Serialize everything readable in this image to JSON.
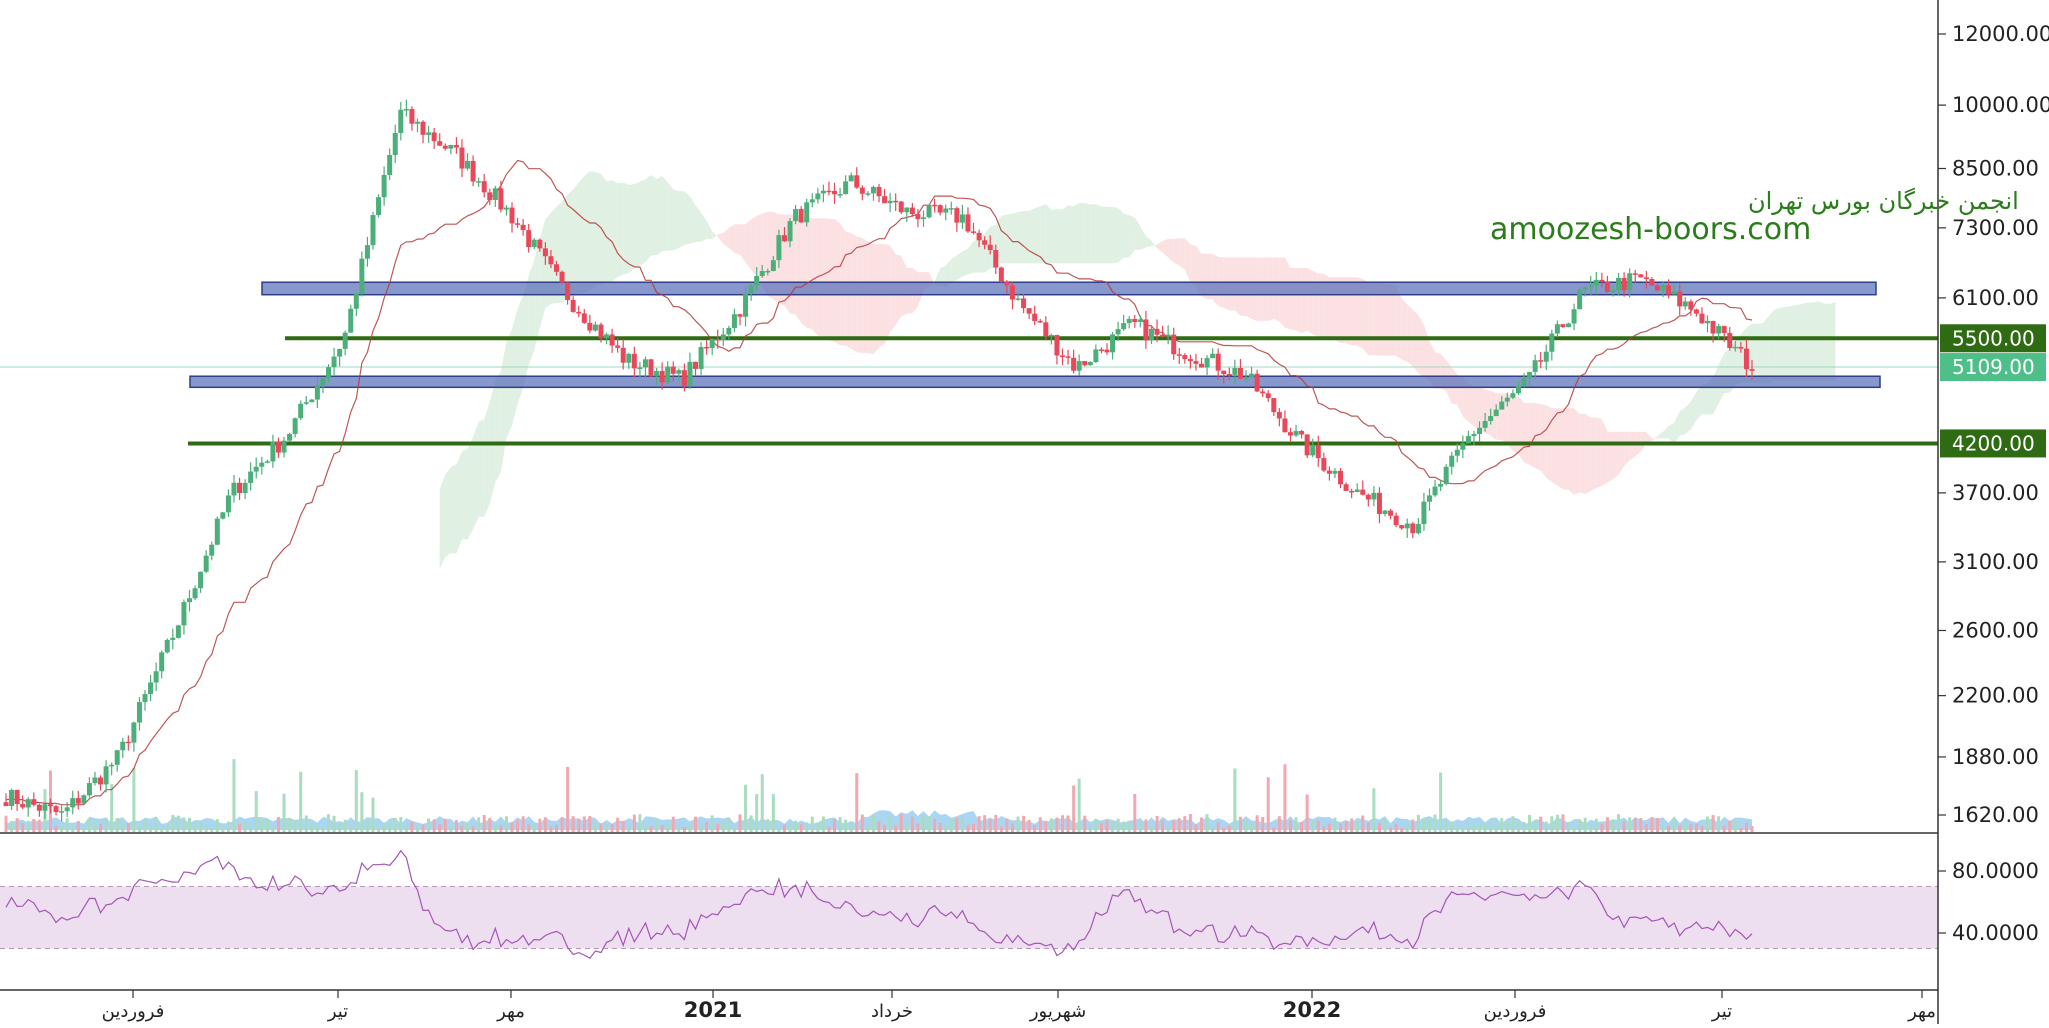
{
  "chart_data": {
    "type": "candlestick",
    "title": "",
    "price_axis": {
      "scale": "log",
      "ticks": [
        "12000.00",
        "10000.00",
        "8500.00",
        "7300.00",
        "6100.00",
        "5500.00",
        "5109.00",
        "4200.00",
        "3700.00",
        "3100.00",
        "2600.00",
        "2200.00",
        "1880.00",
        "1620.00"
      ]
    },
    "rsi_axis": {
      "ticks": [
        "80.0000",
        "40.0000"
      ],
      "band": [
        30,
        70
      ]
    },
    "time_labels": [
      {
        "label": "فروردین",
        "bold": false
      },
      {
        "label": "تیر",
        "bold": false
      },
      {
        "label": "مهر",
        "bold": false
      },
      {
        "label": "2021",
        "bold": true
      },
      {
        "label": "خرداد",
        "bold": false
      },
      {
        "label": "شهریور",
        "bold": false
      },
      {
        "label": "2022",
        "bold": true
      },
      {
        "label": "فروردین",
        "bold": false
      },
      {
        "label": "تیر",
        "bold": false
      },
      {
        "label": "مهر",
        "bold": false
      }
    ],
    "horizontal_levels": [
      {
        "price": 5500,
        "label": "5500.00",
        "color": "#2e6b12"
      },
      {
        "price": 4200,
        "label": "4200.00",
        "color": "#2e6b12"
      }
    ],
    "zones": [
      {
        "low": 6150,
        "high": 6350
      },
      {
        "low": 4850,
        "high": 4990
      }
    ],
    "last_price": {
      "price": 5109,
      "label": "5109.00",
      "color": "#4fbf8a"
    },
    "colors": {
      "up": "#4caf7a",
      "down": "#e8485a",
      "kijun": "#b33a3a",
      "zone": "#5a6fb8",
      "level": "#2e6b12",
      "rsi_line": "#a455b8",
      "rsi_band": "#eedff0",
      "cloud_bull": "#d6ebd8",
      "cloud_bear": "#fbd7da"
    },
    "key_closes": [
      1700,
      1620,
      1880,
      2600,
      3700,
      4300,
      5500,
      9800,
      8800,
      7500,
      6100,
      5200,
      4950,
      5900,
      7500,
      8200,
      7600,
      7500,
      6000,
      5100,
      5700,
      5300,
      5000,
      4200,
      3700,
      3400,
      4300,
      4900,
      6200,
      6400,
      5900,
      5109
    ]
  },
  "watermark": {
    "persian": "انجمن خبرگان بورس تهران",
    "english": "amoozesh-boors.com"
  }
}
